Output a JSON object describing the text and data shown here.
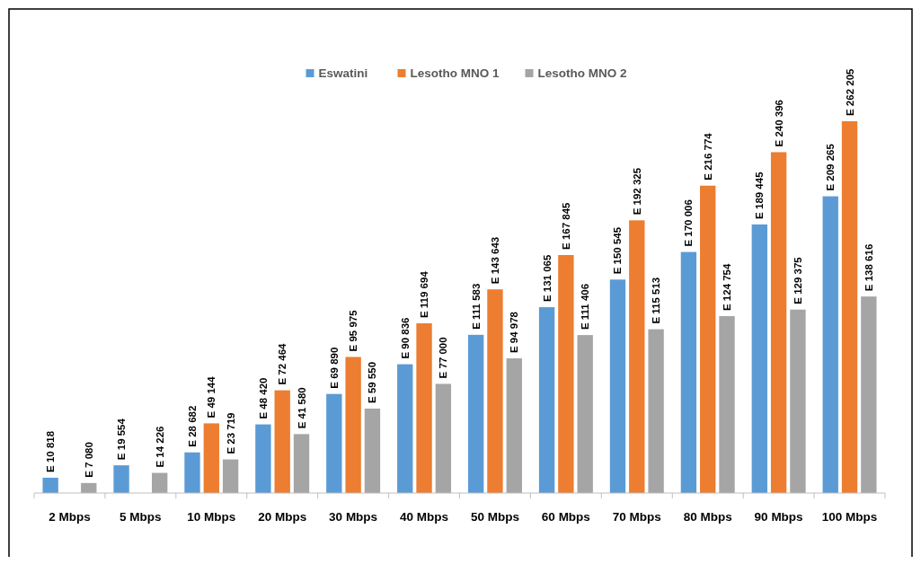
{
  "chart_data": {
    "type": "bar",
    "categories": [
      "2 Mbps",
      "5 Mbps",
      "10 Mbps",
      "20 Mbps",
      "30 Mbps",
      "40 Mbps",
      "50 Mbps",
      "60 Mbps",
      "70 Mbps",
      "80 Mbps",
      "90 Mbps",
      "100 Mbps"
    ],
    "series": [
      {
        "name": "Eswatini",
        "color": "#5b9bd5",
        "values": [
          10818,
          19554,
          28682,
          48420,
          69890,
          90836,
          111583,
          131065,
          150545,
          170006,
          189445,
          209265
        ],
        "value_labels": [
          "E 10 818",
          "E 19 554",
          "E 28 682",
          "E 48 420",
          "E 69 890",
          "E 90 836",
          "E 111 583",
          "E 131 065",
          "E 150 545",
          "E 170 006",
          "E 189 445",
          "E 209 265"
        ]
      },
      {
        "name": "Lesotho MNO 1",
        "color": "#ed7d31",
        "values": [
          null,
          null,
          49144,
          72464,
          95975,
          119694,
          143643,
          167845,
          192325,
          216774,
          240396,
          262205
        ],
        "value_labels": [
          null,
          null,
          "E 49 144",
          "E 72 464",
          "E 95 975",
          "E 119 694",
          "E 143 643",
          "E 167 845",
          "E 192 325",
          "E 216 774",
          "E 240 396",
          "E 262 205"
        ]
      },
      {
        "name": "Lesotho MNO 2",
        "color": "#a5a5a5",
        "values": [
          7080,
          14226,
          23719,
          41580,
          59550,
          77000,
          94978,
          111406,
          115513,
          124754,
          129375,
          138616
        ],
        "value_labels": [
          "E 7 080",
          "E 14 226",
          "E 23 719",
          "E 41 580",
          "E 59 550",
          "E 77 000",
          "E 94 978",
          "E 111 406",
          "E 115 513",
          "E 124 754",
          "E 129 375",
          "E 138 616"
        ]
      }
    ],
    "legend": "top"
  }
}
